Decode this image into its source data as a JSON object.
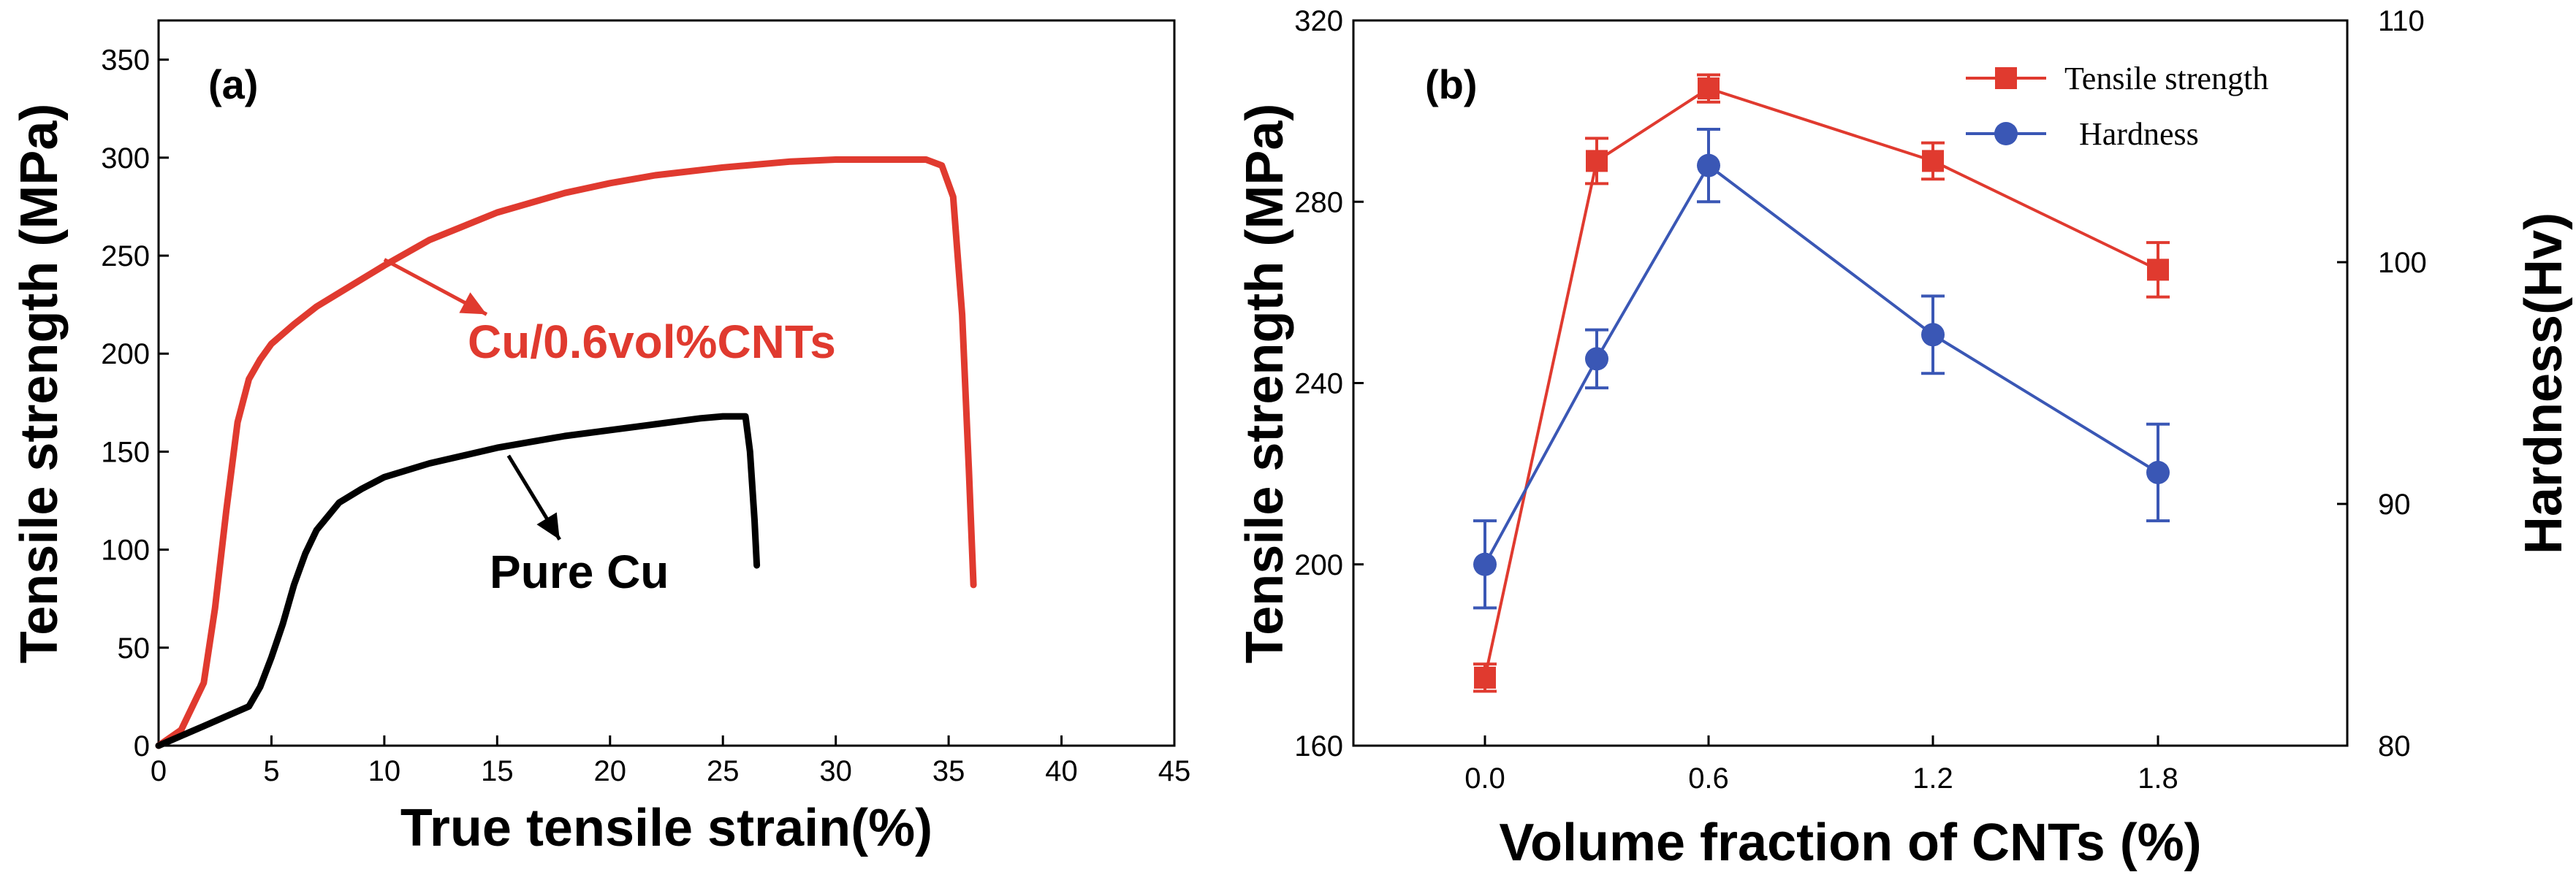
{
  "colors": {
    "red": "#e03a2f",
    "black": "#000000",
    "blue": "#3a57b5"
  },
  "chart_data": [
    {
      "panel": "(a)",
      "type": "line",
      "xlabel": "True tensile strain(%)",
      "ylabel": "Tensile strength (MPa)",
      "xlim": [
        0,
        45
      ],
      "ylim": [
        0,
        370
      ],
      "xticks": [
        0,
        5,
        10,
        15,
        20,
        25,
        30,
        35,
        40,
        45
      ],
      "yticks": [
        0,
        50,
        100,
        150,
        200,
        250,
        300,
        350
      ],
      "series": [
        {
          "name": "Cu/0.6vol%CNTs",
          "color": "#e03a2f",
          "x": [
            0,
            1,
            2,
            2.5,
            3,
            3.5,
            4,
            4.5,
            5,
            6,
            7,
            8,
            10,
            12,
            15,
            18,
            20,
            22,
            25,
            28,
            30,
            32,
            34,
            34.7,
            35.2,
            35.6,
            35.9,
            36.1
          ],
          "y": [
            0,
            8,
            32,
            70,
            120,
            165,
            187,
            197,
            205,
            215,
            224,
            231,
            245,
            258,
            272,
            282,
            287,
            291,
            295,
            298,
            299,
            299,
            299,
            296,
            280,
            220,
            140,
            82
          ]
        },
        {
          "name": "Pure Cu",
          "color": "#000000",
          "x": [
            0,
            2,
            4,
            4.5,
            5,
            5.5,
            6,
            6.5,
            7,
            8,
            9,
            10,
            12,
            15,
            18,
            20,
            22,
            24,
            25,
            26,
            26.2,
            26.4,
            26.5
          ],
          "y": [
            0,
            10,
            20,
            30,
            45,
            62,
            82,
            98,
            110,
            124,
            131,
            137,
            144,
            152,
            158,
            161,
            164,
            167,
            168,
            168,
            150,
            115,
            92
          ]
        }
      ],
      "annotations": [
        {
          "text": "Cu/0.6vol%CNTs",
          "x": 10,
          "y": 248
        },
        {
          "text": "Pure Cu",
          "x": 15.5,
          "y": 148
        }
      ]
    },
    {
      "panel": "(b)",
      "type": "line",
      "xlabel": "Volume fraction of CNTs (%)",
      "ylabel": "Tensile strength (MPa)",
      "ylabel_right": "Hardness(Hv)",
      "categories": [
        "0.0",
        "0.3",
        "0.6",
        "1.2",
        "1.8"
      ],
      "xtick_labels": [
        "0.0",
        "0.6",
        "1.2",
        "1.8"
      ],
      "ylim": [
        160,
        320
      ],
      "yticks": [
        160,
        200,
        240,
        280,
        320
      ],
      "ylim_right": [
        80,
        110
      ],
      "yticks_right": [
        80,
        90,
        100,
        110
      ],
      "legend_position": "top-right",
      "series": [
        {
          "name": "Tensile strength",
          "axis": "left",
          "color": "#e03a2f",
          "marker": "square",
          "values": [
            175,
            289,
            305,
            289,
            265
          ],
          "errors": [
            3,
            5,
            3,
            4,
            6
          ]
        },
        {
          "name": "Hardness",
          "axis": "right",
          "color": "#3a57b5",
          "marker": "circle",
          "values": [
            87.5,
            96,
            104,
            97,
            91.3
          ],
          "errors": [
            1.8,
            1.2,
            1.5,
            1.6,
            2.0
          ]
        }
      ]
    }
  ]
}
